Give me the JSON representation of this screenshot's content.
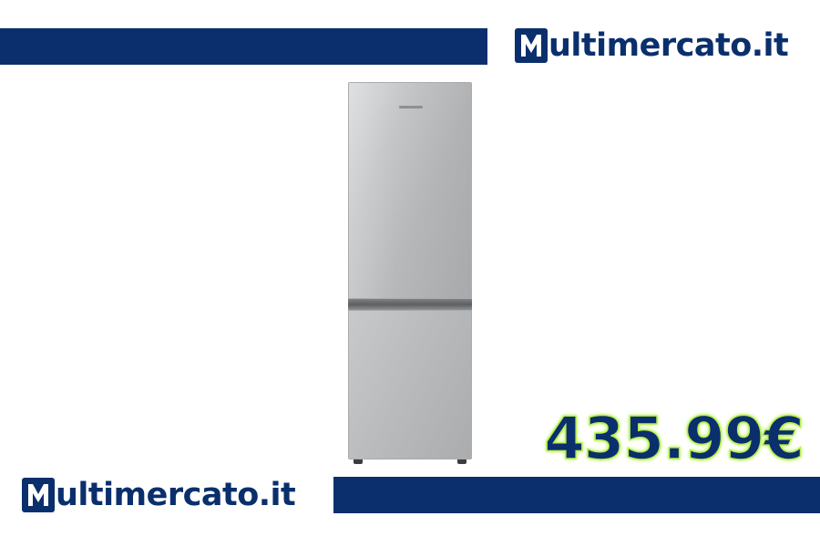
{
  "brand": {
    "logo_letter": "M",
    "name": "ultimercato.it",
    "primary_color": "#0a2f6c",
    "accent_color": "#b7ef52"
  },
  "product": {
    "image": "fridge-freezer-silver",
    "color": "#b8babc"
  },
  "price": {
    "text": "435.99€"
  }
}
